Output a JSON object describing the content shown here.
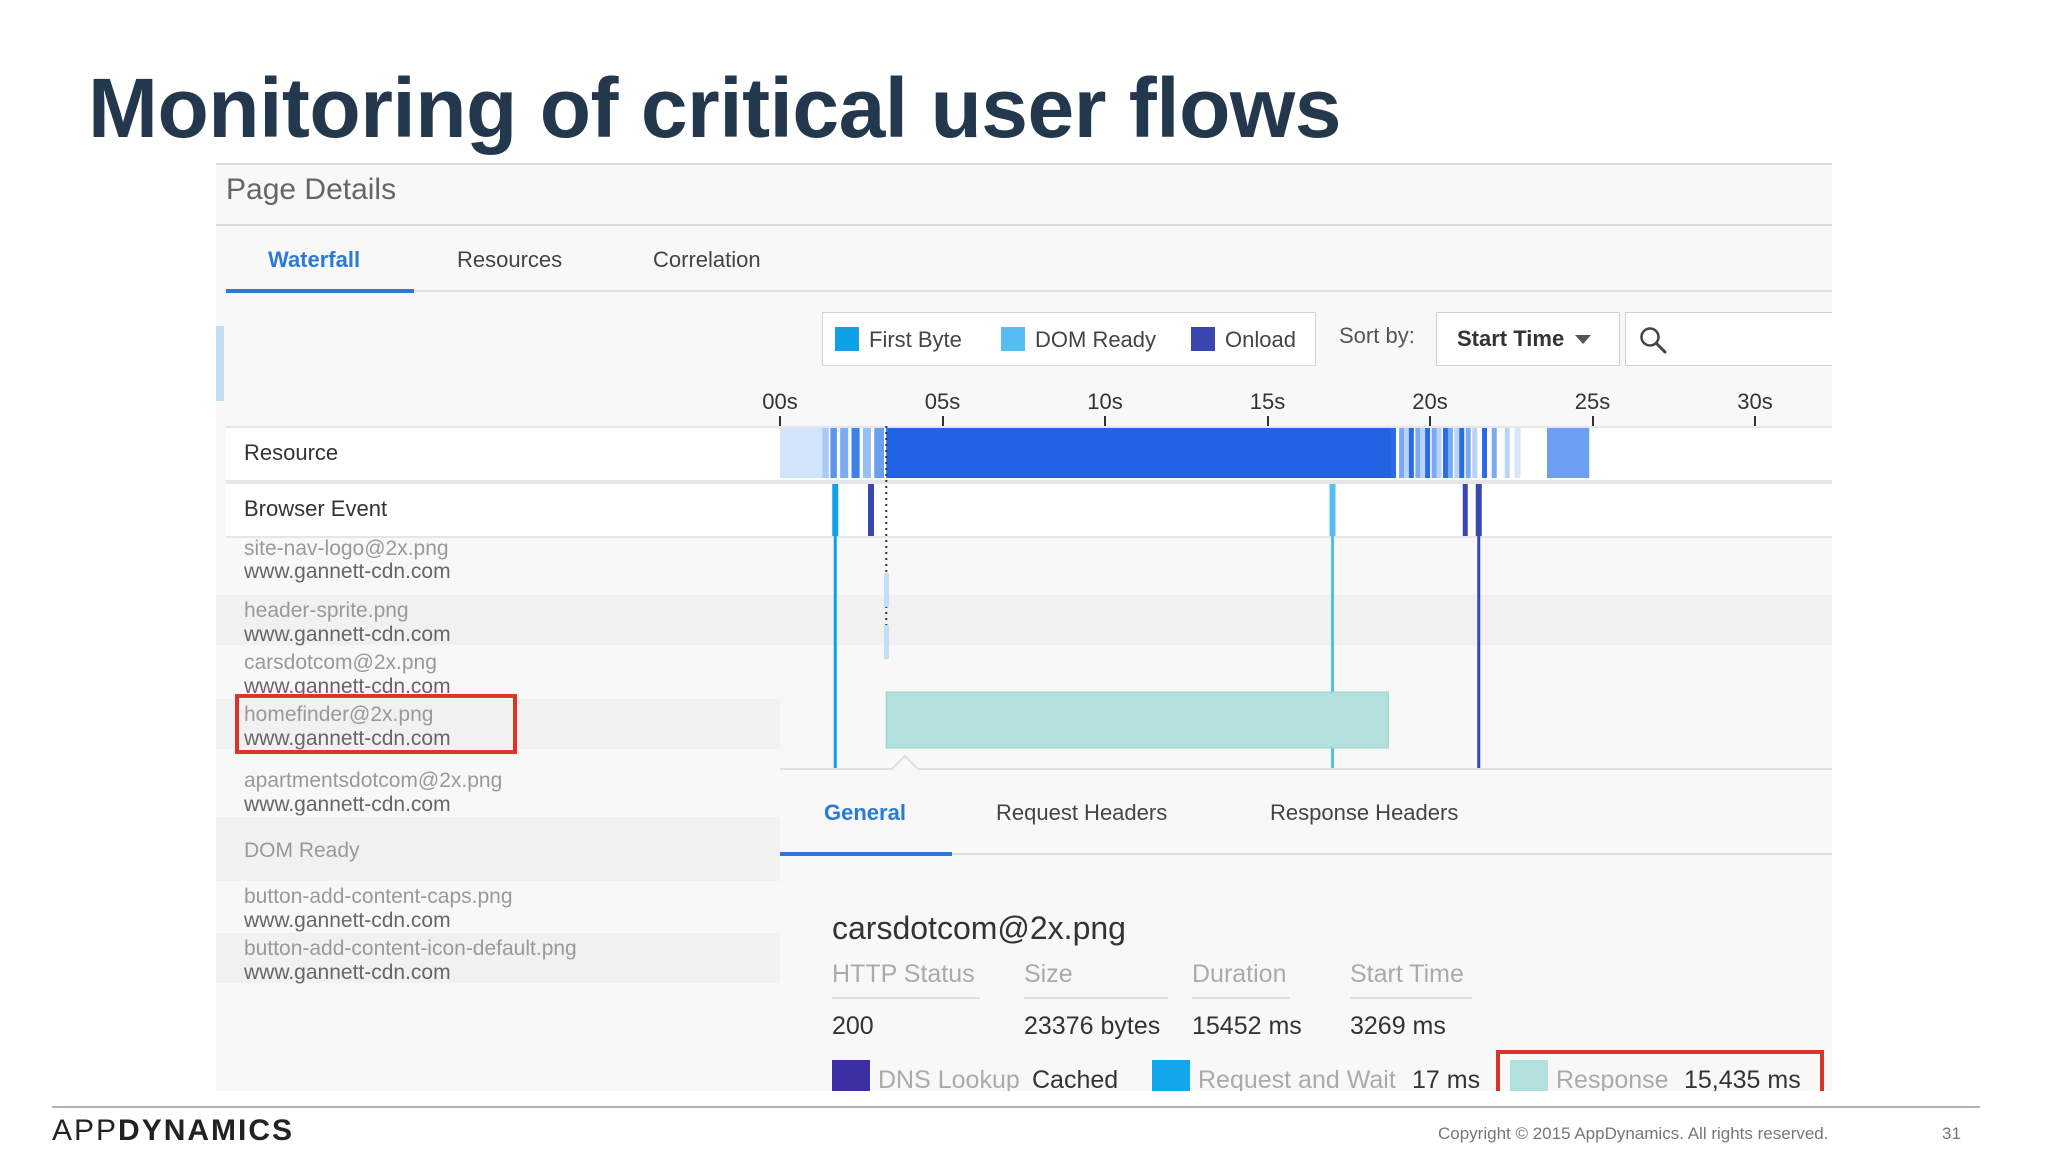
{
  "slide": {
    "title": "Monitoring of critical user flows",
    "brand_light": "APP",
    "brand_bold": "DYNAMICS",
    "copyright": "Copyright © 2015 AppDynamics. All rights reserved.",
    "page_number": "31"
  },
  "panel": {
    "title": "Page Details",
    "tabs": [
      {
        "label": "Waterfall",
        "active": true
      },
      {
        "label": "Resources",
        "active": false
      },
      {
        "label": "Correlation",
        "active": false
      }
    ]
  },
  "legend": {
    "items": [
      {
        "label": "First Byte",
        "color": "#0fa0e8"
      },
      {
        "label": "DOM Ready",
        "color": "#55bdf0"
      },
      {
        "label": "Onload",
        "color": "#3a47b0"
      }
    ]
  },
  "sort": {
    "label": "Sort by:",
    "value": "Start Time",
    "search_icon": "search-icon"
  },
  "timeline": {
    "unit": "seconds",
    "axis_labels": [
      "00s",
      "05s",
      "10s",
      "15s",
      "20s",
      "25s",
      "30s"
    ],
    "axis_values": [
      0,
      5,
      10,
      15,
      20,
      25,
      30
    ],
    "markers": {
      "first_byte_s": 1.7,
      "dom_ready_s": 17.0,
      "onload_s": 21.5
    },
    "dotted_line_s": 3.27
  },
  "rows": {
    "resource_label": "Resource",
    "browser_event_label": "Browser Event"
  },
  "resources": [
    {
      "name": "site-nav-logo@2x.png",
      "domain": "www.gannett-cdn.com"
    },
    {
      "name": "header-sprite.png",
      "domain": "www.gannett-cdn.com"
    },
    {
      "name": "carsdotcom@2x.png",
      "domain": "www.gannett-cdn.com",
      "highlighted": true,
      "start_s": 3.269,
      "duration_s": 15.452
    },
    {
      "name": "homefinder@2x.png",
      "domain": "www.gannett-cdn.com"
    },
    {
      "name": "apartmentsdotcom@2x.png",
      "domain": "www.gannett-cdn.com"
    },
    {
      "name": "DOM Ready",
      "domain": ""
    },
    {
      "name": "button-add-content-caps.png",
      "domain": "www.gannett-cdn.com"
    },
    {
      "name": "button-add-content-icon-default.png",
      "domain": "www.gannett-cdn.com"
    }
  ],
  "detail": {
    "tabs": [
      {
        "label": "General",
        "active": true
      },
      {
        "label": "Request Headers",
        "active": false
      },
      {
        "label": "Response Headers",
        "active": false
      }
    ],
    "title": "carsdotcom@2x.png",
    "columns": [
      {
        "header": "HTTP Status",
        "value": "200"
      },
      {
        "header": "Size",
        "value": "23376 bytes"
      },
      {
        "header": "Duration",
        "value": "15452 ms"
      },
      {
        "header": "Start Time",
        "value": "3269 ms"
      }
    ],
    "phases": [
      {
        "label": "DNS Lookup",
        "value": "Cached",
        "color": "#3a2ea0"
      },
      {
        "label": "Request and Wait",
        "value": "17 ms",
        "color": "#12a6ea"
      },
      {
        "label": "Response",
        "value": "15,435 ms",
        "color": "#b2e0dc"
      }
    ]
  }
}
